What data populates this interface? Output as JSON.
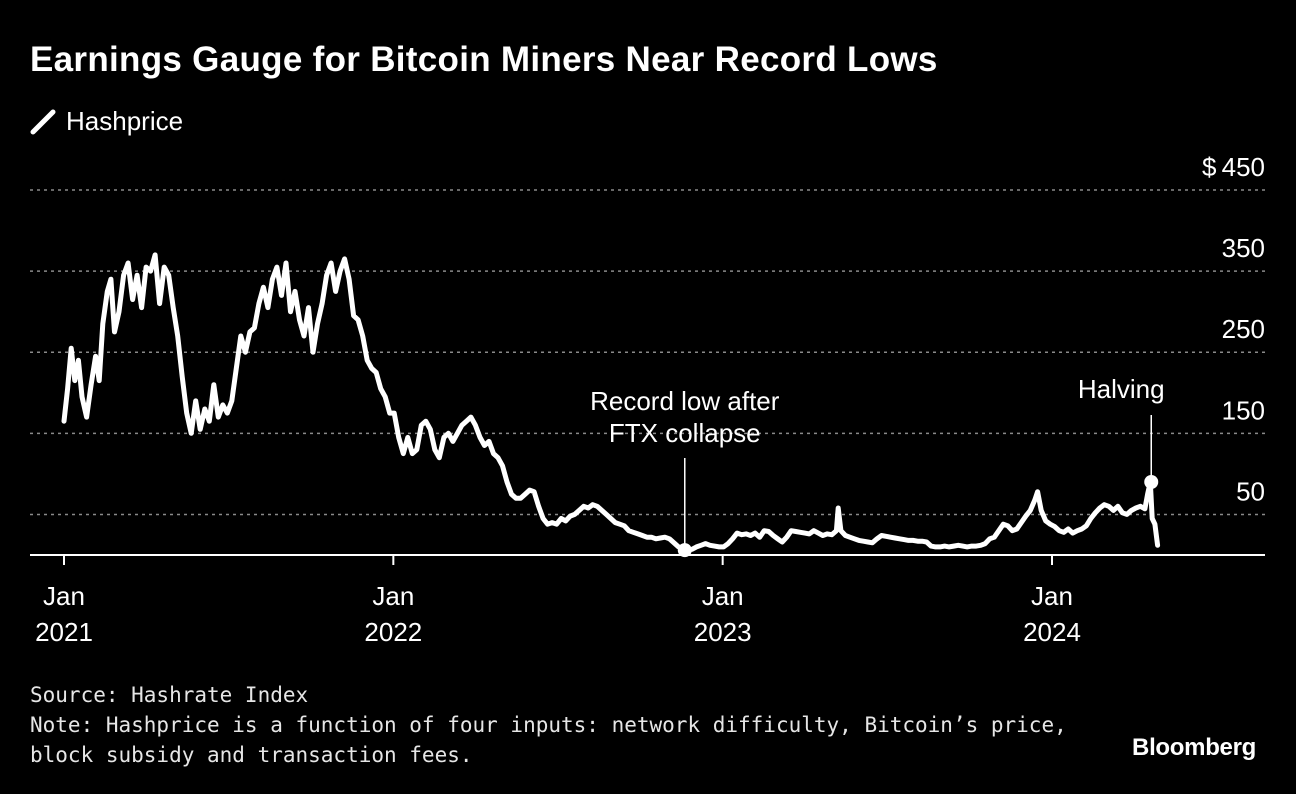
{
  "title": "Earnings Gauge for Bitcoin Miners Near Record Lows",
  "legend": {
    "label": "Hashprice",
    "color": "#ffffff"
  },
  "source": "Source: Hashrate Index",
  "note_line1": "Note: Hashprice is a function of four inputs: network difficulty, Bitcoin’s price,",
  "note_line2": "block subsidy and transaction fees.",
  "brand": "Bloomberg",
  "colors": {
    "background": "#000000",
    "line": "#ffffff",
    "grid": "#8a8a8a",
    "text": "#ffffff"
  },
  "chart_data": {
    "type": "line",
    "title": "Earnings Gauge for Bitcoin Miners Near Record Lows",
    "ylim": [
      0,
      450
    ],
    "yticks": [
      50,
      150,
      250,
      350,
      450
    ],
    "ytick_labels": [
      "50",
      "150",
      "250",
      "350",
      "$ 450"
    ],
    "ygrid": true,
    "xlim": [
      "2021-01-01",
      "2024-05-15"
    ],
    "xticks": [
      {
        "date": "2021-01-01",
        "line1": "Jan",
        "line2": "2021"
      },
      {
        "date": "2022-01-01",
        "line1": "Jan",
        "line2": "2022"
      },
      {
        "date": "2023-01-01",
        "line1": "Jan",
        "line2": "2023"
      },
      {
        "date": "2024-01-01",
        "line1": "Jan",
        "line2": "2024"
      }
    ],
    "series": [
      {
        "name": "Hashprice",
        "points": [
          [
            "2021-01-01",
            165
          ],
          [
            "2021-01-05",
            205
          ],
          [
            "2021-01-09",
            255
          ],
          [
            "2021-01-13",
            215
          ],
          [
            "2021-01-17",
            240
          ],
          [
            "2021-01-21",
            195
          ],
          [
            "2021-01-26",
            170
          ],
          [
            "2021-01-31",
            210
          ],
          [
            "2021-02-05",
            245
          ],
          [
            "2021-02-09",
            215
          ],
          [
            "2021-02-13",
            285
          ],
          [
            "2021-02-18",
            325
          ],
          [
            "2021-02-22",
            340
          ],
          [
            "2021-02-26",
            275
          ],
          [
            "2021-03-03",
            300
          ],
          [
            "2021-03-08",
            345
          ],
          [
            "2021-03-13",
            360
          ],
          [
            "2021-03-18",
            315
          ],
          [
            "2021-03-23",
            345
          ],
          [
            "2021-03-28",
            305
          ],
          [
            "2021-04-02",
            355
          ],
          [
            "2021-04-07",
            350
          ],
          [
            "2021-04-12",
            370
          ],
          [
            "2021-04-17",
            310
          ],
          [
            "2021-04-22",
            355
          ],
          [
            "2021-04-27",
            345
          ],
          [
            "2021-05-02",
            305
          ],
          [
            "2021-05-07",
            270
          ],
          [
            "2021-05-12",
            220
          ],
          [
            "2021-05-17",
            175
          ],
          [
            "2021-05-22",
            150
          ],
          [
            "2021-05-27",
            190
          ],
          [
            "2021-06-01",
            155
          ],
          [
            "2021-06-06",
            180
          ],
          [
            "2021-06-11",
            165
          ],
          [
            "2021-06-16",
            210
          ],
          [
            "2021-06-21",
            170
          ],
          [
            "2021-06-26",
            185
          ],
          [
            "2021-07-01",
            175
          ],
          [
            "2021-07-06",
            190
          ],
          [
            "2021-07-11",
            230
          ],
          [
            "2021-07-16",
            270
          ],
          [
            "2021-07-21",
            250
          ],
          [
            "2021-07-26",
            275
          ],
          [
            "2021-07-31",
            280
          ],
          [
            "2021-08-05",
            310
          ],
          [
            "2021-08-10",
            330
          ],
          [
            "2021-08-15",
            305
          ],
          [
            "2021-08-20",
            340
          ],
          [
            "2021-08-25",
            355
          ],
          [
            "2021-08-30",
            320
          ],
          [
            "2021-09-04",
            360
          ],
          [
            "2021-09-09",
            300
          ],
          [
            "2021-09-14",
            325
          ],
          [
            "2021-09-19",
            290
          ],
          [
            "2021-09-24",
            270
          ],
          [
            "2021-09-29",
            305
          ],
          [
            "2021-10-04",
            250
          ],
          [
            "2021-10-09",
            285
          ],
          [
            "2021-10-14",
            310
          ],
          [
            "2021-10-19",
            345
          ],
          [
            "2021-10-24",
            360
          ],
          [
            "2021-10-29",
            325
          ],
          [
            "2021-11-03",
            350
          ],
          [
            "2021-11-08",
            365
          ],
          [
            "2021-11-13",
            340
          ],
          [
            "2021-11-18",
            295
          ],
          [
            "2021-11-23",
            290
          ],
          [
            "2021-11-28",
            270
          ],
          [
            "2021-12-03",
            240
          ],
          [
            "2021-12-08",
            230
          ],
          [
            "2021-12-13",
            225
          ],
          [
            "2021-12-18",
            205
          ],
          [
            "2021-12-23",
            195
          ],
          [
            "2021-12-28",
            175
          ],
          [
            "2022-01-02",
            175
          ],
          [
            "2022-01-07",
            145
          ],
          [
            "2022-01-12",
            125
          ],
          [
            "2022-01-17",
            145
          ],
          [
            "2022-01-22",
            125
          ],
          [
            "2022-01-27",
            130
          ],
          [
            "2022-02-01",
            160
          ],
          [
            "2022-02-06",
            165
          ],
          [
            "2022-02-11",
            155
          ],
          [
            "2022-02-16",
            130
          ],
          [
            "2022-02-21",
            120
          ],
          [
            "2022-02-26",
            145
          ],
          [
            "2022-03-03",
            150
          ],
          [
            "2022-03-08",
            140
          ],
          [
            "2022-03-13",
            150
          ],
          [
            "2022-03-18",
            160
          ],
          [
            "2022-03-23",
            165
          ],
          [
            "2022-03-28",
            170
          ],
          [
            "2022-04-02",
            160
          ],
          [
            "2022-04-07",
            145
          ],
          [
            "2022-04-12",
            135
          ],
          [
            "2022-04-17",
            140
          ],
          [
            "2022-04-22",
            125
          ],
          [
            "2022-04-27",
            120
          ],
          [
            "2022-05-02",
            110
          ],
          [
            "2022-05-07",
            90
          ],
          [
            "2022-05-12",
            75
          ],
          [
            "2022-05-17",
            70
          ],
          [
            "2022-05-22",
            70
          ],
          [
            "2022-05-27",
            75
          ],
          [
            "2022-06-01",
            80
          ],
          [
            "2022-06-06",
            78
          ],
          [
            "2022-06-11",
            60
          ],
          [
            "2022-06-16",
            45
          ],
          [
            "2022-06-21",
            38
          ],
          [
            "2022-06-26",
            40
          ],
          [
            "2022-07-01",
            38
          ],
          [
            "2022-07-06",
            45
          ],
          [
            "2022-07-11",
            42
          ],
          [
            "2022-07-16",
            48
          ],
          [
            "2022-07-21",
            50
          ],
          [
            "2022-07-26",
            55
          ],
          [
            "2022-07-31",
            60
          ],
          [
            "2022-08-05",
            58
          ],
          [
            "2022-08-10",
            62
          ],
          [
            "2022-08-15",
            60
          ],
          [
            "2022-08-20",
            55
          ],
          [
            "2022-08-25",
            50
          ],
          [
            "2022-08-30",
            45
          ],
          [
            "2022-09-04",
            40
          ],
          [
            "2022-09-09",
            38
          ],
          [
            "2022-09-14",
            36
          ],
          [
            "2022-09-19",
            30
          ],
          [
            "2022-09-24",
            28
          ],
          [
            "2022-09-29",
            26
          ],
          [
            "2022-10-04",
            24
          ],
          [
            "2022-10-09",
            22
          ],
          [
            "2022-10-14",
            22
          ],
          [
            "2022-10-19",
            20
          ],
          [
            "2022-10-24",
            21
          ],
          [
            "2022-10-29",
            22
          ],
          [
            "2022-11-03",
            20
          ],
          [
            "2022-11-08",
            15
          ],
          [
            "2022-11-13",
            10
          ],
          [
            "2022-11-18",
            8
          ],
          [
            "2022-11-23",
            6
          ],
          [
            "2022-11-28",
            7
          ],
          [
            "2022-12-03",
            10
          ],
          [
            "2022-12-08",
            12
          ],
          [
            "2022-12-13",
            14
          ],
          [
            "2022-12-18",
            12
          ],
          [
            "2022-12-23",
            11
          ],
          [
            "2022-12-28",
            10
          ],
          [
            "2023-01-02",
            10
          ],
          [
            "2023-01-07",
            14
          ],
          [
            "2023-01-12",
            20
          ],
          [
            "2023-01-17",
            27
          ],
          [
            "2023-01-22",
            25
          ],
          [
            "2023-01-27",
            26
          ],
          [
            "2023-02-01",
            24
          ],
          [
            "2023-02-06",
            27
          ],
          [
            "2023-02-11",
            22
          ],
          [
            "2023-02-16",
            30
          ],
          [
            "2023-02-21",
            29
          ],
          [
            "2023-02-26",
            24
          ],
          [
            "2023-03-03",
            20
          ],
          [
            "2023-03-08",
            16
          ],
          [
            "2023-03-13",
            22
          ],
          [
            "2023-03-18",
            30
          ],
          [
            "2023-03-23",
            29
          ],
          [
            "2023-03-28",
            28
          ],
          [
            "2023-04-02",
            27
          ],
          [
            "2023-04-07",
            26
          ],
          [
            "2023-04-12",
            30
          ],
          [
            "2023-04-17",
            27
          ],
          [
            "2023-04-22",
            24
          ],
          [
            "2023-04-27",
            26
          ],
          [
            "2023-05-02",
            25
          ],
          [
            "2023-05-07",
            30
          ],
          [
            "2023-05-09",
            58
          ],
          [
            "2023-05-12",
            30
          ],
          [
            "2023-05-17",
            24
          ],
          [
            "2023-05-22",
            22
          ],
          [
            "2023-05-27",
            20
          ],
          [
            "2023-06-01",
            18
          ],
          [
            "2023-06-06",
            17
          ],
          [
            "2023-06-11",
            16
          ],
          [
            "2023-06-16",
            15
          ],
          [
            "2023-06-21",
            20
          ],
          [
            "2023-06-26",
            24
          ],
          [
            "2023-07-01",
            23
          ],
          [
            "2023-07-06",
            22
          ],
          [
            "2023-07-11",
            21
          ],
          [
            "2023-07-16",
            20
          ],
          [
            "2023-07-21",
            19
          ],
          [
            "2023-07-26",
            18
          ],
          [
            "2023-07-31",
            18
          ],
          [
            "2023-08-05",
            17
          ],
          [
            "2023-08-10",
            17
          ],
          [
            "2023-08-15",
            16
          ],
          [
            "2023-08-20",
            11
          ],
          [
            "2023-08-25",
            10
          ],
          [
            "2023-08-30",
            10
          ],
          [
            "2023-09-04",
            11
          ],
          [
            "2023-09-09",
            10
          ],
          [
            "2023-09-14",
            11
          ],
          [
            "2023-09-19",
            12
          ],
          [
            "2023-09-24",
            11
          ],
          [
            "2023-09-29",
            10
          ],
          [
            "2023-10-04",
            11
          ],
          [
            "2023-10-09",
            11
          ],
          [
            "2023-10-14",
            12
          ],
          [
            "2023-10-19",
            14
          ],
          [
            "2023-10-24",
            20
          ],
          [
            "2023-10-29",
            22
          ],
          [
            "2023-11-03",
            30
          ],
          [
            "2023-11-08",
            38
          ],
          [
            "2023-11-13",
            36
          ],
          [
            "2023-11-18",
            30
          ],
          [
            "2023-11-23",
            32
          ],
          [
            "2023-11-28",
            40
          ],
          [
            "2023-12-03",
            48
          ],
          [
            "2023-12-08",
            55
          ],
          [
            "2023-12-13",
            68
          ],
          [
            "2023-12-16",
            78
          ],
          [
            "2023-12-20",
            55
          ],
          [
            "2023-12-25",
            42
          ],
          [
            "2023-12-30",
            38
          ],
          [
            "2024-01-04",
            35
          ],
          [
            "2024-01-09",
            30
          ],
          [
            "2024-01-14",
            28
          ],
          [
            "2024-01-19",
            32
          ],
          [
            "2024-01-24",
            27
          ],
          [
            "2024-01-29",
            30
          ],
          [
            "2024-02-03",
            32
          ],
          [
            "2024-02-08",
            36
          ],
          [
            "2024-02-13",
            45
          ],
          [
            "2024-02-18",
            52
          ],
          [
            "2024-02-23",
            58
          ],
          [
            "2024-02-28",
            62
          ],
          [
            "2024-03-04",
            60
          ],
          [
            "2024-03-09",
            55
          ],
          [
            "2024-03-14",
            60
          ],
          [
            "2024-03-19",
            52
          ],
          [
            "2024-03-24",
            50
          ],
          [
            "2024-03-29",
            55
          ],
          [
            "2024-04-03",
            58
          ],
          [
            "2024-04-08",
            60
          ],
          [
            "2024-04-13",
            57
          ],
          [
            "2024-04-16",
            75
          ],
          [
            "2024-04-19",
            90
          ],
          [
            "2024-04-21",
            45
          ],
          [
            "2024-04-24",
            38
          ],
          [
            "2024-04-27",
            12
          ]
        ]
      }
    ],
    "annotations": [
      {
        "date": "2022-11-20",
        "value": 6,
        "line1": "Record low after",
        "line2": "FTX collapse"
      },
      {
        "date": "2024-04-20",
        "value": 90,
        "line1": "Halving"
      }
    ]
  }
}
